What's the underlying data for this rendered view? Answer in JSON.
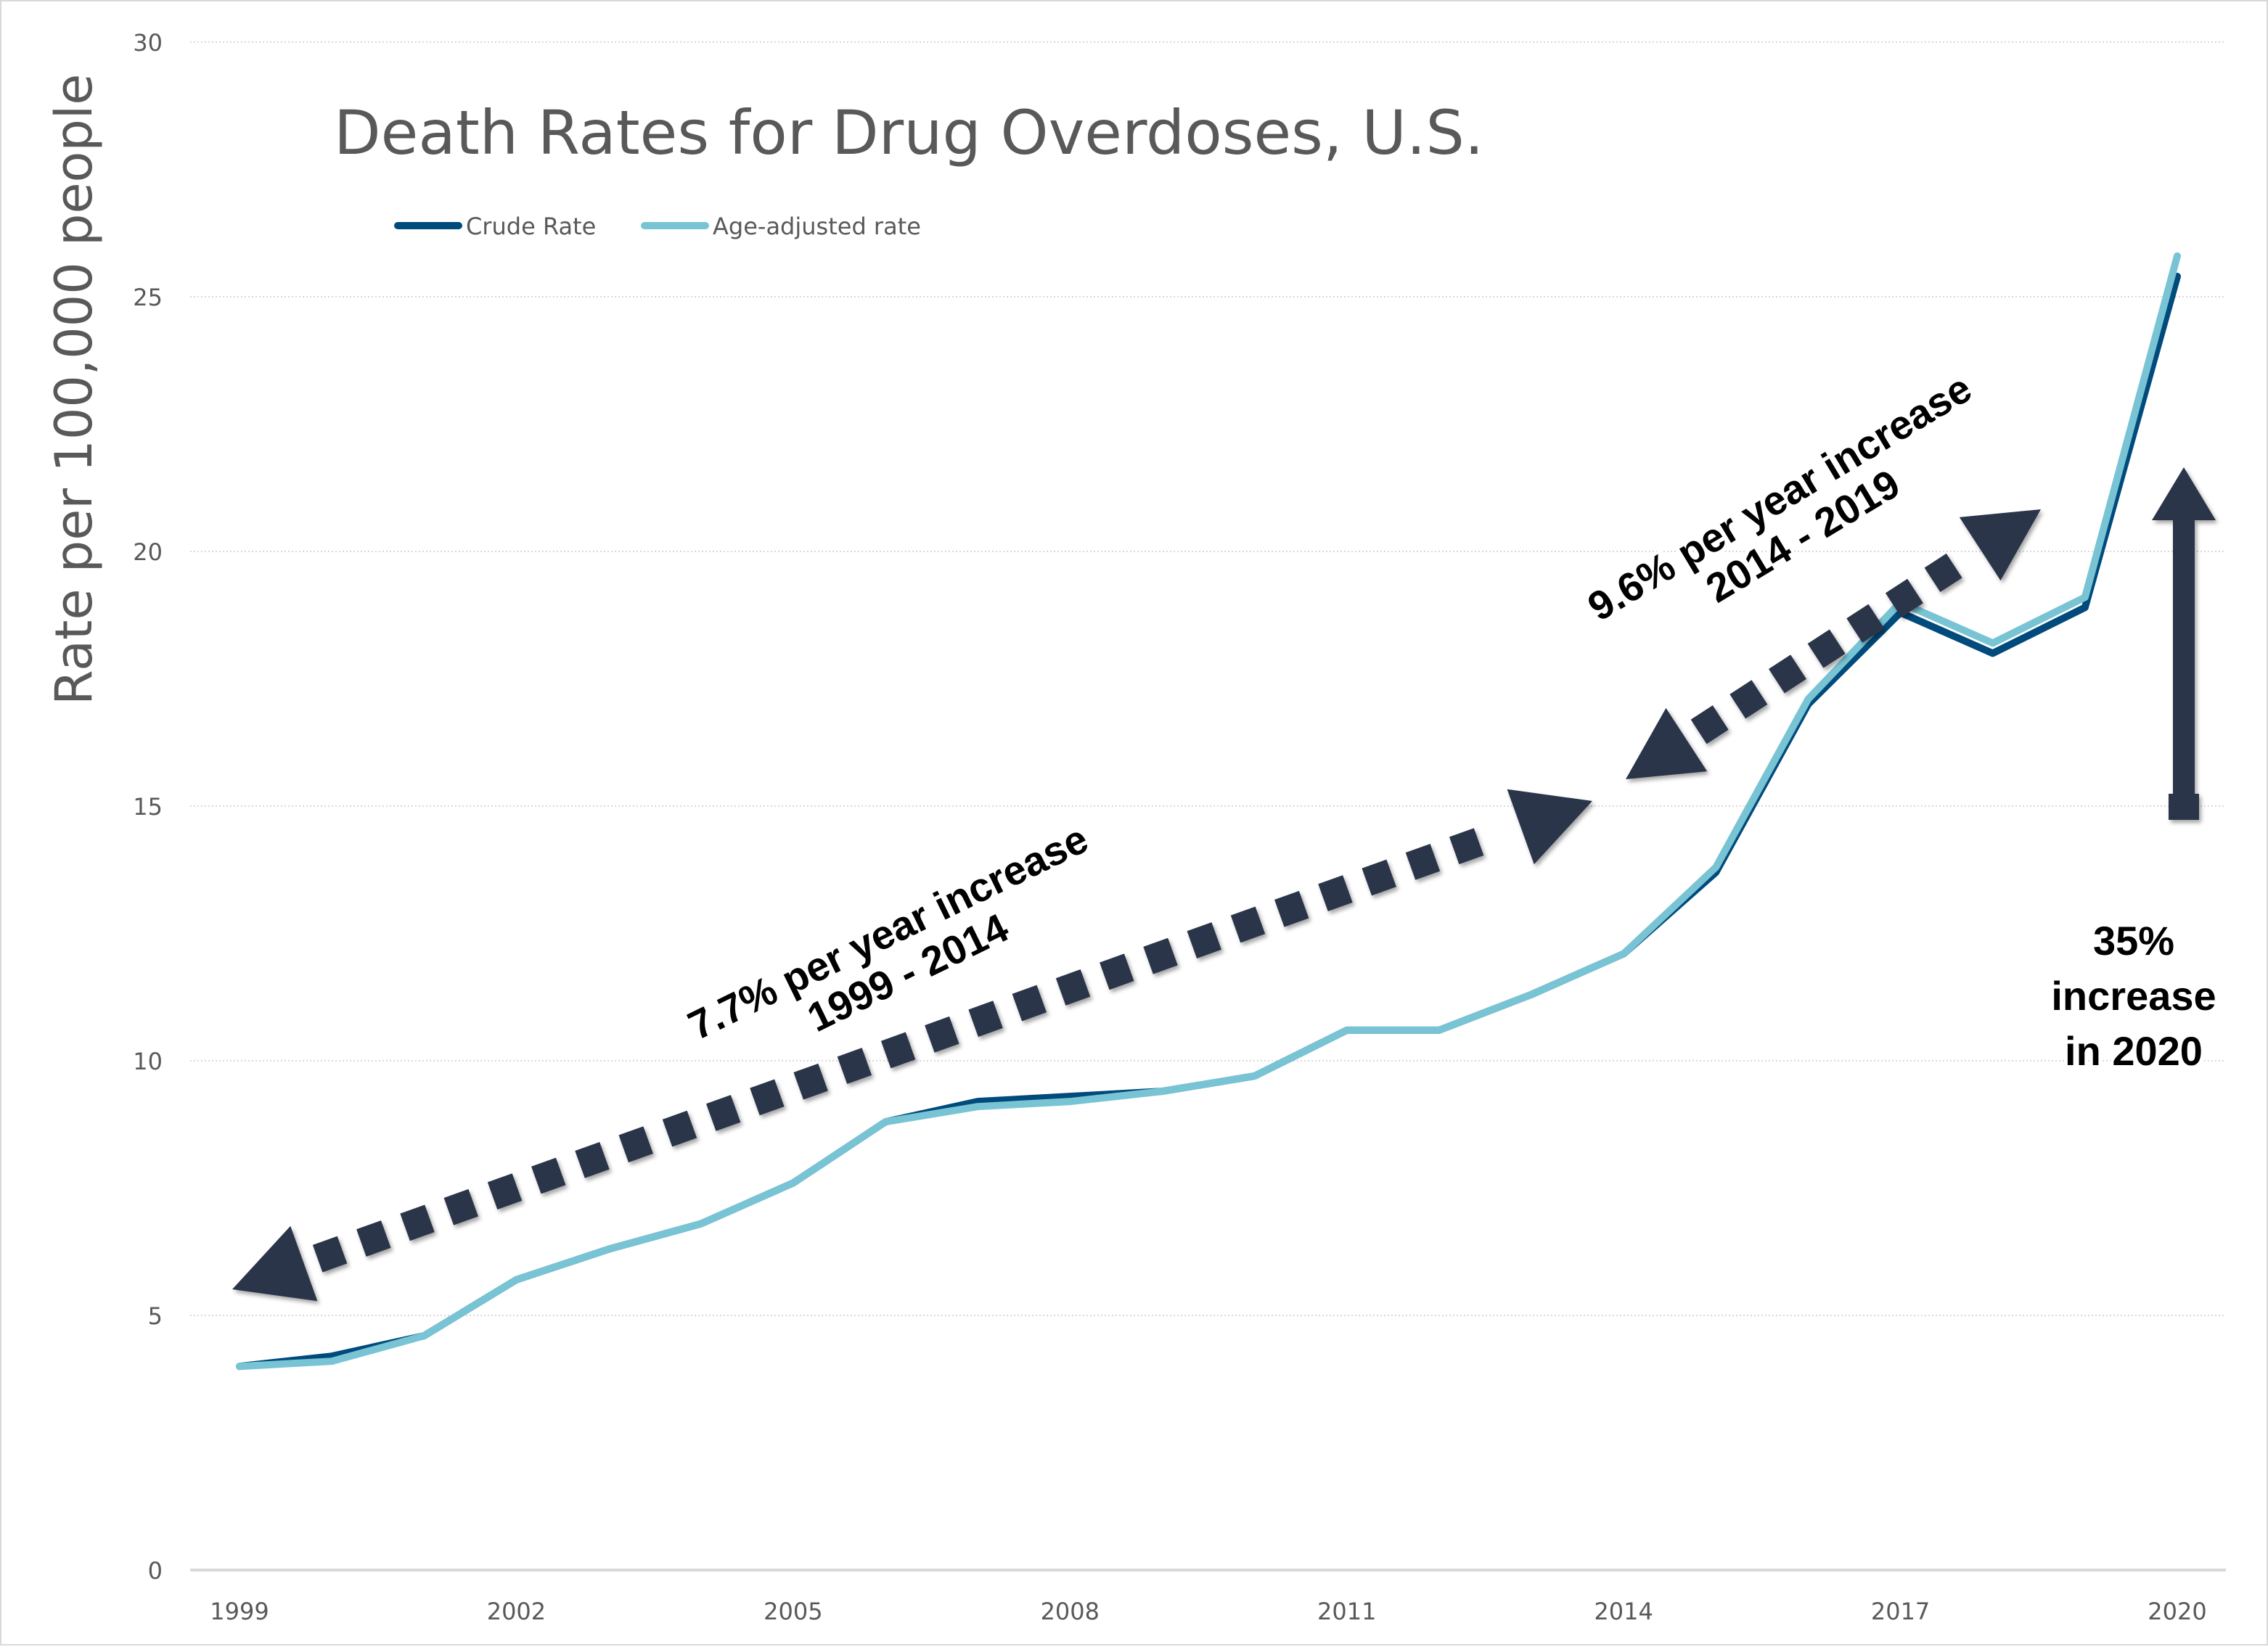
{
  "chart_data": {
    "type": "line",
    "title": "Death Rates for Drug Overdoses, U.S.",
    "xlabel": "",
    "ylabel": "Rate per 100,000 people",
    "x": [
      1999,
      2000,
      2001,
      2002,
      2003,
      2004,
      2005,
      2006,
      2007,
      2008,
      2009,
      2010,
      2011,
      2012,
      2013,
      2014,
      2015,
      2016,
      2017,
      2018,
      2019,
      2020
    ],
    "x_tick_labels": [
      "1999",
      "2002",
      "2005",
      "2008",
      "2011",
      "2014",
      "2017",
      "2020"
    ],
    "y_tick_labels": [
      "0",
      "5",
      "10",
      "15",
      "20",
      "25",
      "30"
    ],
    "ylim": [
      0,
      30
    ],
    "xlim": [
      1999,
      2020
    ],
    "grid": "horizontal dotted",
    "legend_position": "top-left",
    "series": [
      {
        "name": "Crude Rate",
        "color": "#004a7c",
        "values": [
          4.0,
          4.2,
          4.6,
          5.7,
          6.3,
          6.8,
          7.6,
          8.8,
          9.2,
          9.3,
          9.4,
          9.7,
          10.6,
          10.6,
          11.3,
          12.1,
          13.7,
          17.0,
          18.8,
          18.0,
          18.9,
          25.4
        ]
      },
      {
        "name": "Age-adjusted rate",
        "color": "#78c4d4",
        "values": [
          4.0,
          4.1,
          4.6,
          5.7,
          6.3,
          6.8,
          7.6,
          8.8,
          9.1,
          9.2,
          9.4,
          9.7,
          10.6,
          10.6,
          11.3,
          12.1,
          13.8,
          17.1,
          19.0,
          18.2,
          19.1,
          25.8
        ]
      }
    ],
    "annotations": [
      {
        "id": "trend-1999-2014",
        "line1": "7.7% per year increase",
        "line2": "1999 - 2014",
        "arrow": "dotted double-headed",
        "from_year": 1999,
        "to_year": 2014
      },
      {
        "id": "trend-2014-2019",
        "line1": "9.6% per year increase",
        "line2": "2014 - 2019",
        "arrow": "dotted double-headed",
        "from_year": 2014,
        "to_year": 2019
      },
      {
        "id": "jump-2020",
        "lines": [
          "35%",
          "increase",
          "in 2020"
        ],
        "arrow": "up"
      }
    ],
    "annotation_color": "#2b3548"
  }
}
